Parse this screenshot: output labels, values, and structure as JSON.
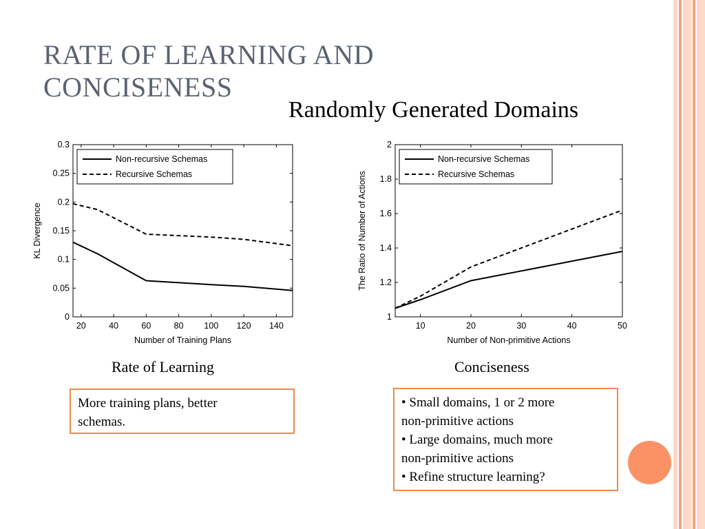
{
  "slide": {
    "title_line1": "RATE OF LEARNING AND",
    "title_line2": "CONCISENESS",
    "subtitle": "Randomly Generated Domains",
    "colors": {
      "accent": "#f08a4b",
      "title": "#5a6373",
      "circle": "#fb9265"
    }
  },
  "captions": {
    "left": "Rate of Learning",
    "right": "Conciseness"
  },
  "notes": {
    "left": [
      "More training plans, better",
      "schemas."
    ],
    "right": [
      "• Small domains, 1 or 2 more",
      "non-primitive actions",
      "• Large domains, much more",
      "non-primitive actions",
      "• Refine structure learning?"
    ]
  },
  "chart_data": [
    {
      "type": "line",
      "xlabel": "Number of Training Plans",
      "ylabel": "KL Divergence",
      "xlim": [
        15,
        150
      ],
      "ylim": [
        0,
        0.3
      ],
      "xticks": [
        20,
        40,
        60,
        80,
        100,
        120,
        140
      ],
      "yticks": [
        0,
        0.05,
        0.1,
        0.15,
        0.2,
        0.25,
        0.3
      ],
      "legend_position": "top-left",
      "grid": false,
      "series": [
        {
          "name": "Non-recursive Schemas",
          "style": "solid",
          "x": [
            15,
            30,
            60,
            100,
            120,
            150
          ],
          "y": [
            0.13,
            0.11,
            0.063,
            0.056,
            0.053,
            0.046
          ]
        },
        {
          "name": "Recursive Schemas",
          "style": "dashed",
          "x": [
            15,
            30,
            60,
            100,
            120,
            150
          ],
          "y": [
            0.197,
            0.187,
            0.144,
            0.139,
            0.135,
            0.124
          ]
        }
      ]
    },
    {
      "type": "line",
      "xlabel": "Number of Non-primitive Actions",
      "ylabel": "The Ratio of Number of Actions",
      "xlim": [
        5,
        50
      ],
      "ylim": [
        1,
        2
      ],
      "xticks": [
        10,
        20,
        30,
        40,
        50
      ],
      "yticks": [
        1,
        1.2,
        1.4,
        1.6,
        1.8,
        2
      ],
      "legend_position": "top-left",
      "grid": false,
      "series": [
        {
          "name": "Non-recursive Schemas",
          "style": "solid",
          "x": [
            5,
            10,
            20,
            50
          ],
          "y": [
            1.05,
            1.1,
            1.21,
            1.38
          ]
        },
        {
          "name": "Recursive Schemas",
          "style": "dashed",
          "x": [
            5,
            10,
            20,
            50
          ],
          "y": [
            1.05,
            1.12,
            1.29,
            1.62
          ]
        }
      ]
    }
  ]
}
